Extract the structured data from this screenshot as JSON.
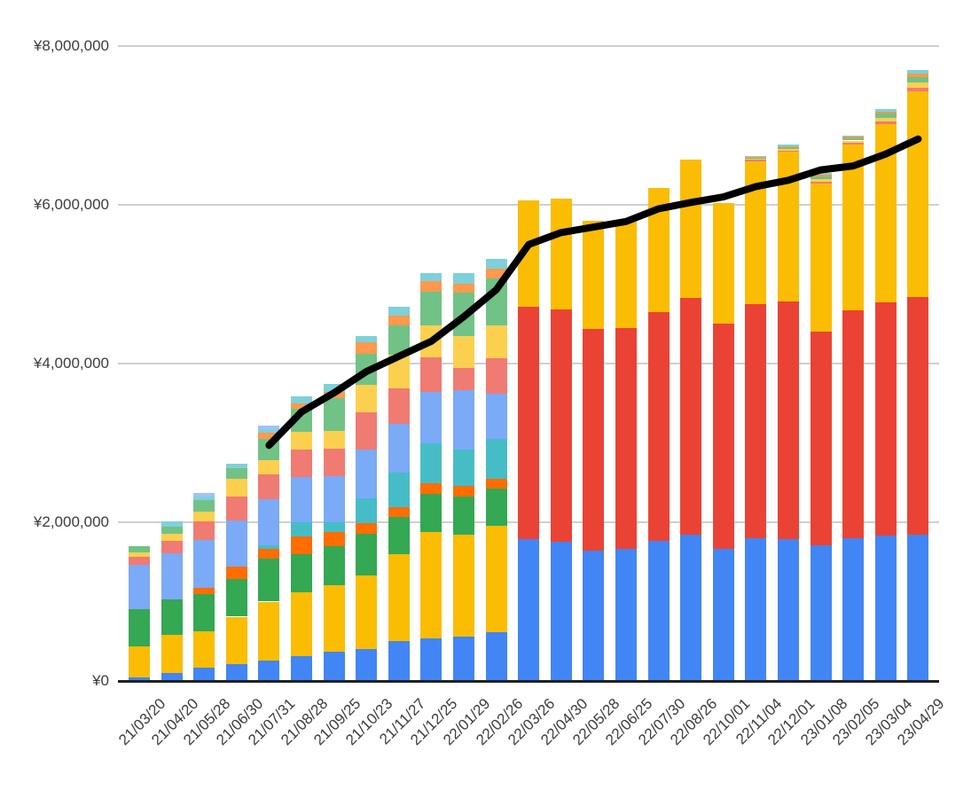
{
  "chart_data": {
    "type": "bar",
    "subtype": "stacked-column-with-line-overlay",
    "title": "",
    "currency_symbol": "¥",
    "legend": "none",
    "grid": true,
    "grid_color": "#cfcfcf",
    "axis_baseline_color": "#212121",
    "tick_label_color": "#3c3c3c",
    "background_color": "#ffffff",
    "categories": [
      "21/03/20",
      "21/04/20",
      "21/05/28",
      "21/06/30",
      "21/07/31",
      "21/08/28",
      "21/09/25",
      "21/10/23",
      "21/11/27",
      "21/12/25",
      "22/01/29",
      "22/02/26",
      "22/03/26",
      "22/04/30",
      "22/05/28",
      "22/06/25",
      "22/07/30",
      "22/08/26",
      "22/10/01",
      "22/11/04",
      "22/12/01",
      "23/01/08",
      "23/02/05",
      "23/03/04",
      "23/04/29"
    ],
    "series": [
      {
        "name": "blue",
        "color": "#4285F4",
        "values": [
          50000,
          100000,
          170000,
          210000,
          255000,
          315000,
          370000,
          405000,
          500000,
          535000,
          555000,
          610000,
          1785000,
          1750000,
          1645000,
          1670000,
          1765000,
          1840000,
          1670000,
          1800000,
          1785000,
          1710000,
          1795000,
          1830000,
          1840000
        ]
      },
      {
        "name": "red",
        "color": "#EA4335",
        "values": [
          0,
          0,
          0,
          0,
          0,
          0,
          0,
          0,
          0,
          0,
          0,
          0,
          2930000,
          2930000,
          2795000,
          2780000,
          2885000,
          2985000,
          2830000,
          2945000,
          3000000,
          2690000,
          2880000,
          2940000,
          3000000
        ]
      },
      {
        "name": "yellow",
        "color": "#FBBC04",
        "values": [
          390000,
          480000,
          460000,
          600000,
          745000,
          800000,
          840000,
          930000,
          1100000,
          1340000,
          1285000,
          1340000,
          1340000,
          1400000,
          1355000,
          1365000,
          1565000,
          1745000,
          1525000,
          1805000,
          1880000,
          1870000,
          2080000,
          2245000,
          2590000
        ]
      },
      {
        "name": "green",
        "color": "#34A853",
        "values": [
          470000,
          450000,
          465000,
          480000,
          540000,
          485000,
          490000,
          520000,
          465000,
          485000,
          485000,
          475000,
          0,
          0,
          0,
          0,
          0,
          0,
          0,
          0,
          0,
          0,
          0,
          0,
          0
        ]
      },
      {
        "name": "orange",
        "color": "#FF6D01",
        "values": [
          0,
          0,
          80000,
          150000,
          130000,
          225000,
          180000,
          130000,
          130000,
          130000,
          130000,
          120000,
          0,
          0,
          0,
          0,
          0,
          0,
          0,
          0,
          0,
          0,
          0,
          0,
          0
        ]
      },
      {
        "name": "teal",
        "color": "#46BDC6",
        "values": [
          0,
          0,
          0,
          0,
          40000,
          170000,
          120000,
          315000,
          430000,
          505000,
          465000,
          505000,
          0,
          0,
          0,
          0,
          0,
          0,
          0,
          0,
          0,
          0,
          0,
          0,
          0
        ]
      },
      {
        "name": "light-blue",
        "color": "#7BAAF7",
        "values": [
          550000,
          580000,
          600000,
          585000,
          575000,
          575000,
          580000,
          615000,
          615000,
          650000,
          745000,
          575000,
          0,
          0,
          0,
          0,
          0,
          0,
          0,
          0,
          0,
          0,
          0,
          0,
          0
        ]
      },
      {
        "name": "salmon",
        "color": "#F07B72",
        "values": [
          100000,
          160000,
          240000,
          300000,
          315000,
          345000,
          350000,
          465000,
          445000,
          430000,
          280000,
          445000,
          0,
          0,
          0,
          0,
          0,
          0,
          0,
          15000,
          20000,
          25000,
          25000,
          40000,
          50000
        ]
      },
      {
        "name": "light-yellow",
        "color": "#FCD04F",
        "values": [
          60000,
          80000,
          115000,
          220000,
          185000,
          230000,
          225000,
          355000,
          430000,
          400000,
          400000,
          410000,
          0,
          0,
          0,
          0,
          0,
          0,
          0,
          15000,
          20000,
          30000,
          30000,
          45000,
          65000
        ]
      },
      {
        "name": "light-green",
        "color": "#71C287",
        "values": [
          75000,
          95000,
          150000,
          140000,
          260000,
          280000,
          410000,
          390000,
          365000,
          430000,
          545000,
          595000,
          0,
          0,
          0,
          0,
          0,
          0,
          0,
          15000,
          25000,
          35000,
          30000,
          50000,
          60000
        ]
      },
      {
        "name": "light-orange",
        "color": "#FF994D",
        "values": [
          0,
          0,
          0,
          0,
          80000,
          75000,
          75000,
          140000,
          125000,
          130000,
          120000,
          120000,
          0,
          0,
          0,
          0,
          0,
          0,
          0,
          8000,
          12000,
          15000,
          15000,
          25000,
          45000
        ]
      },
      {
        "name": "pale-cyan",
        "color": "#7ED1D9",
        "values": [
          0,
          70000,
          45000,
          55000,
          50000,
          85000,
          105000,
          80000,
          105000,
          105000,
          130000,
          125000,
          0,
          0,
          0,
          0,
          0,
          0,
          0,
          10000,
          15000,
          25000,
          20000,
          30000,
          45000
        ]
      },
      {
        "name": "pale-blue",
        "color": "#A0C2F9",
        "values": [
          0,
          0,
          45000,
          0,
          45000,
          0,
          0,
          0,
          0,
          0,
          0,
          0,
          0,
          0,
          0,
          0,
          0,
          0,
          0,
          0,
          0,
          0,
          0,
          0,
          0
        ]
      }
    ],
    "line_series": {
      "name": "black-line",
      "color": "#000000",
      "stroke_width": 8,
      "values": [
        null,
        null,
        null,
        null,
        2970000,
        3390000,
        3630000,
        3900000,
        4090000,
        4280000,
        4590000,
        4930000,
        5500000,
        5650000,
        5720000,
        5790000,
        5950000,
        6030000,
        6100000,
        6230000,
        6310000,
        6440000,
        6490000,
        6640000,
        6830000
      ]
    },
    "y_axis": {
      "min": 0,
      "max": 8000000,
      "tick_values": [
        0,
        2000000,
        4000000,
        6000000,
        8000000
      ],
      "tick_labels": [
        "¥0",
        "¥2,000,000",
        "¥4,000,000",
        "¥6,000,000",
        "¥8,000,000"
      ]
    },
    "x_axis": {
      "label_rotation_deg": 45
    }
  }
}
